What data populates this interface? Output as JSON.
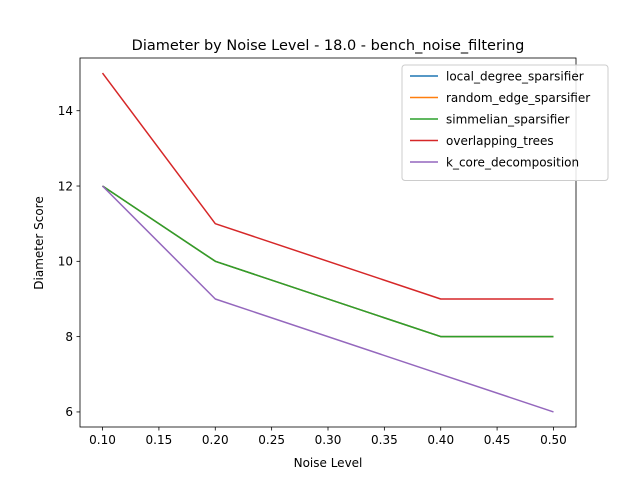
{
  "chart_data": {
    "type": "line",
    "title": "Diameter by Noise Level - 18.0 - bench_noise_filtering",
    "xlabel": "Noise Level",
    "ylabel": "Diameter Score",
    "x": [
      0.1,
      0.2,
      0.4,
      0.5
    ],
    "xlim": [
      0.08,
      0.52
    ],
    "ylim": [
      5.6,
      15.4
    ],
    "xticks": [
      0.1,
      0.15,
      0.2,
      0.25,
      0.3,
      0.35,
      0.4,
      0.45,
      0.5
    ],
    "xtick_labels": [
      "0.10",
      "0.15",
      "0.20",
      "0.25",
      "0.30",
      "0.35",
      "0.40",
      "0.45",
      "0.50"
    ],
    "yticks": [
      6,
      8,
      10,
      12,
      14
    ],
    "ytick_labels": [
      "6",
      "8",
      "10",
      "12",
      "14"
    ],
    "grid": false,
    "legend_position": "top-right",
    "series": [
      {
        "name": "local_degree_sparsifier",
        "color": "#1f77b4",
        "values": [
          12,
          10,
          8,
          8
        ]
      },
      {
        "name": "random_edge_sparsifier",
        "color": "#ff7f0e",
        "values": [
          12,
          10,
          8,
          8
        ]
      },
      {
        "name": "simmelian_sparsifier",
        "color": "#2ca02c",
        "values": [
          12,
          10,
          8,
          8
        ]
      },
      {
        "name": "overlapping_trees",
        "color": "#d62728",
        "values": [
          15,
          11,
          9,
          9
        ]
      },
      {
        "name": "k_core_decomposition",
        "color": "#9467bd",
        "values": [
          12,
          9,
          7,
          6
        ]
      }
    ]
  }
}
